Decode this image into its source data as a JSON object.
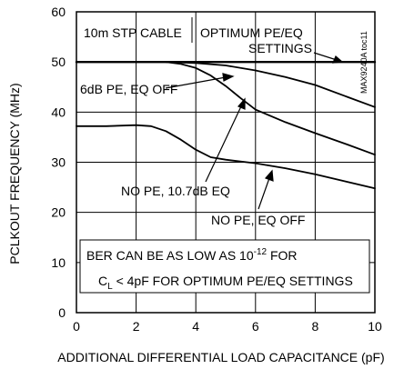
{
  "chart_data": {
    "type": "line",
    "xlabel": "ADDITIONAL DIFFERENTIAL LOAD CAPACITANCE (pF)",
    "ylabel": "PCLKOUT FREQUENCY (MHz)",
    "xlim": [
      0,
      10
    ],
    "ylim": [
      0,
      60
    ],
    "xticks": [
      "0",
      "2",
      "4",
      "6",
      "8",
      "10"
    ],
    "yticks": [
      "0",
      "10",
      "20",
      "30",
      "40",
      "50",
      "60"
    ],
    "grid": true,
    "watermark": "MAX9240A toc11",
    "series": [
      {
        "name": "OPTIMUM PE/EQ SETTINGS",
        "x": [
          0,
          2,
          4,
          6,
          8,
          10
        ],
        "y": [
          50,
          50,
          50,
          50,
          50,
          50
        ]
      },
      {
        "name": "6dB PE, EQ OFF",
        "x": [
          0,
          3,
          4,
          5,
          6,
          7,
          8,
          9,
          10
        ],
        "y": [
          50,
          50,
          49.8,
          49.3,
          48.3,
          47,
          45.4,
          43.2,
          41
        ]
      },
      {
        "name": "NO PE, 10.7dB EQ",
        "x": [
          3,
          3.5,
          4,
          4.5,
          5,
          5.5,
          6,
          7,
          8,
          9,
          10
        ],
        "y": [
          50,
          49.6,
          48.8,
          47.3,
          45.2,
          42.8,
          40.5,
          38,
          35.8,
          33.7,
          31.5
        ]
      },
      {
        "name": "NO PE, EQ OFF",
        "x": [
          0,
          1,
          2,
          2.5,
          3,
          3.5,
          4,
          4.5,
          5,
          6,
          7,
          8,
          9,
          10
        ],
        "y": [
          37.2,
          37.2,
          37.4,
          37.2,
          36.2,
          34.5,
          32.5,
          31,
          30.5,
          29.8,
          28.8,
          27.6,
          26.2,
          24.8
        ]
      }
    ],
    "annotations": {
      "cable": "10m STP CABLE",
      "optimum_line1": "OPTIMUM PE/EQ",
      "optimum_line2": "SETTINGS",
      "pe6": "6dB PE, EQ OFF",
      "nope107": "NO PE, 10.7dB EQ",
      "nopeoff": "NO PE, EQ OFF",
      "ber_line1": "BER CAN BE AS LOW AS 10",
      "ber_exp": "-12",
      "ber_for": " FOR",
      "ber_cl": "C",
      "ber_cl_sub": "L",
      "ber_line2_rest": " < 4pF FOR OPTIMUM PE/EQ SETTINGS"
    }
  }
}
